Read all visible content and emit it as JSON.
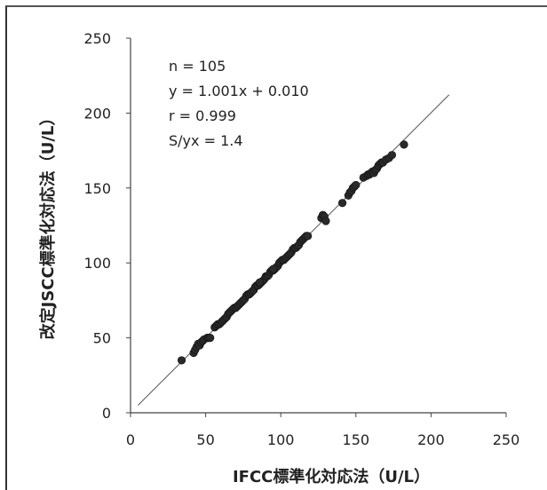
{
  "chart_data": {
    "type": "scatter",
    "xlabel": "IFCC標準化対応法（U/L）",
    "ylabel": "改定JSCC標準化対応法（U/L）",
    "xlim": [
      0,
      250
    ],
    "ylim": [
      0,
      250
    ],
    "xticks": [
      0,
      50,
      100,
      150,
      200,
      250
    ],
    "yticks": [
      0,
      50,
      100,
      150,
      200,
      250
    ],
    "grid": false,
    "point_color": "#2a2a2a",
    "line_color": "#555555",
    "annotations": [
      "n = 105",
      "y = 1.001x + 0.010",
      "r = 0.999",
      "S/yx = 1.4"
    ],
    "regression": {
      "slope": 1.001,
      "intercept": 0.01,
      "x_range": [
        5,
        212
      ]
    },
    "points": [
      [
        34,
        35
      ],
      [
        42,
        40
      ],
      [
        43,
        42
      ],
      [
        44,
        44
      ],
      [
        45,
        46
      ],
      [
        46,
        45
      ],
      [
        47,
        47
      ],
      [
        48,
        48
      ],
      [
        49,
        49
      ],
      [
        51,
        50
      ],
      [
        52,
        50
      ],
      [
        56,
        57
      ],
      [
        57,
        58
      ],
      [
        58,
        59
      ],
      [
        59,
        59
      ],
      [
        60,
        60
      ],
      [
        61,
        61
      ],
      [
        62,
        62
      ],
      [
        63,
        63
      ],
      [
        64,
        64
      ],
      [
        65,
        66
      ],
      [
        66,
        67
      ],
      [
        67,
        68
      ],
      [
        68,
        69
      ],
      [
        69,
        70
      ],
      [
        70,
        70
      ],
      [
        71,
        71
      ],
      [
        72,
        72
      ],
      [
        73,
        73
      ],
      [
        74,
        74
      ],
      [
        75,
        75
      ],
      [
        76,
        76
      ],
      [
        77,
        78
      ],
      [
        78,
        79
      ],
      [
        79,
        79
      ],
      [
        80,
        80
      ],
      [
        81,
        81
      ],
      [
        82,
        82
      ],
      [
        83,
        84
      ],
      [
        84,
        85
      ],
      [
        85,
        85
      ],
      [
        86,
        86
      ],
      [
        87,
        87
      ],
      [
        88,
        88
      ],
      [
        89,
        89
      ],
      [
        90,
        91
      ],
      [
        91,
        91
      ],
      [
        92,
        92
      ],
      [
        93,
        94
      ],
      [
        94,
        95
      ],
      [
        95,
        95
      ],
      [
        96,
        96
      ],
      [
        97,
        97
      ],
      [
        98,
        98
      ],
      [
        99,
        100
      ],
      [
        100,
        101
      ],
      [
        101,
        102
      ],
      [
        102,
        102
      ],
      [
        103,
        103
      ],
      [
        104,
        104
      ],
      [
        105,
        105
      ],
      [
        106,
        106
      ],
      [
        107,
        107
      ],
      [
        108,
        109
      ],
      [
        109,
        110
      ],
      [
        110,
        110
      ],
      [
        111,
        111
      ],
      [
        112,
        112
      ],
      [
        113,
        114
      ],
      [
        114,
        115
      ],
      [
        115,
        116
      ],
      [
        116,
        117
      ],
      [
        117,
        118
      ],
      [
        118,
        118
      ],
      [
        127,
        130
      ],
      [
        128,
        132
      ],
      [
        129,
        131
      ],
      [
        130,
        128
      ],
      [
        141,
        140
      ],
      [
        145,
        145
      ],
      [
        146,
        147
      ],
      [
        147,
        148
      ],
      [
        148,
        150
      ],
      [
        149,
        151
      ],
      [
        150,
        152
      ],
      [
        155,
        157
      ],
      [
        157,
        158
      ],
      [
        158,
        159
      ],
      [
        159,
        159
      ],
      [
        160,
        160
      ],
      [
        161,
        161
      ],
      [
        162,
        160
      ],
      [
        163,
        162
      ],
      [
        164,
        163
      ],
      [
        165,
        165
      ],
      [
        166,
        166
      ],
      [
        167,
        167
      ],
      [
        168,
        167
      ],
      [
        170,
        169
      ],
      [
        172,
        170
      ],
      [
        174,
        172
      ],
      [
        182,
        179
      ],
      [
        53,
        50
      ],
      [
        86,
        87
      ],
      [
        95,
        96
      ]
    ]
  }
}
